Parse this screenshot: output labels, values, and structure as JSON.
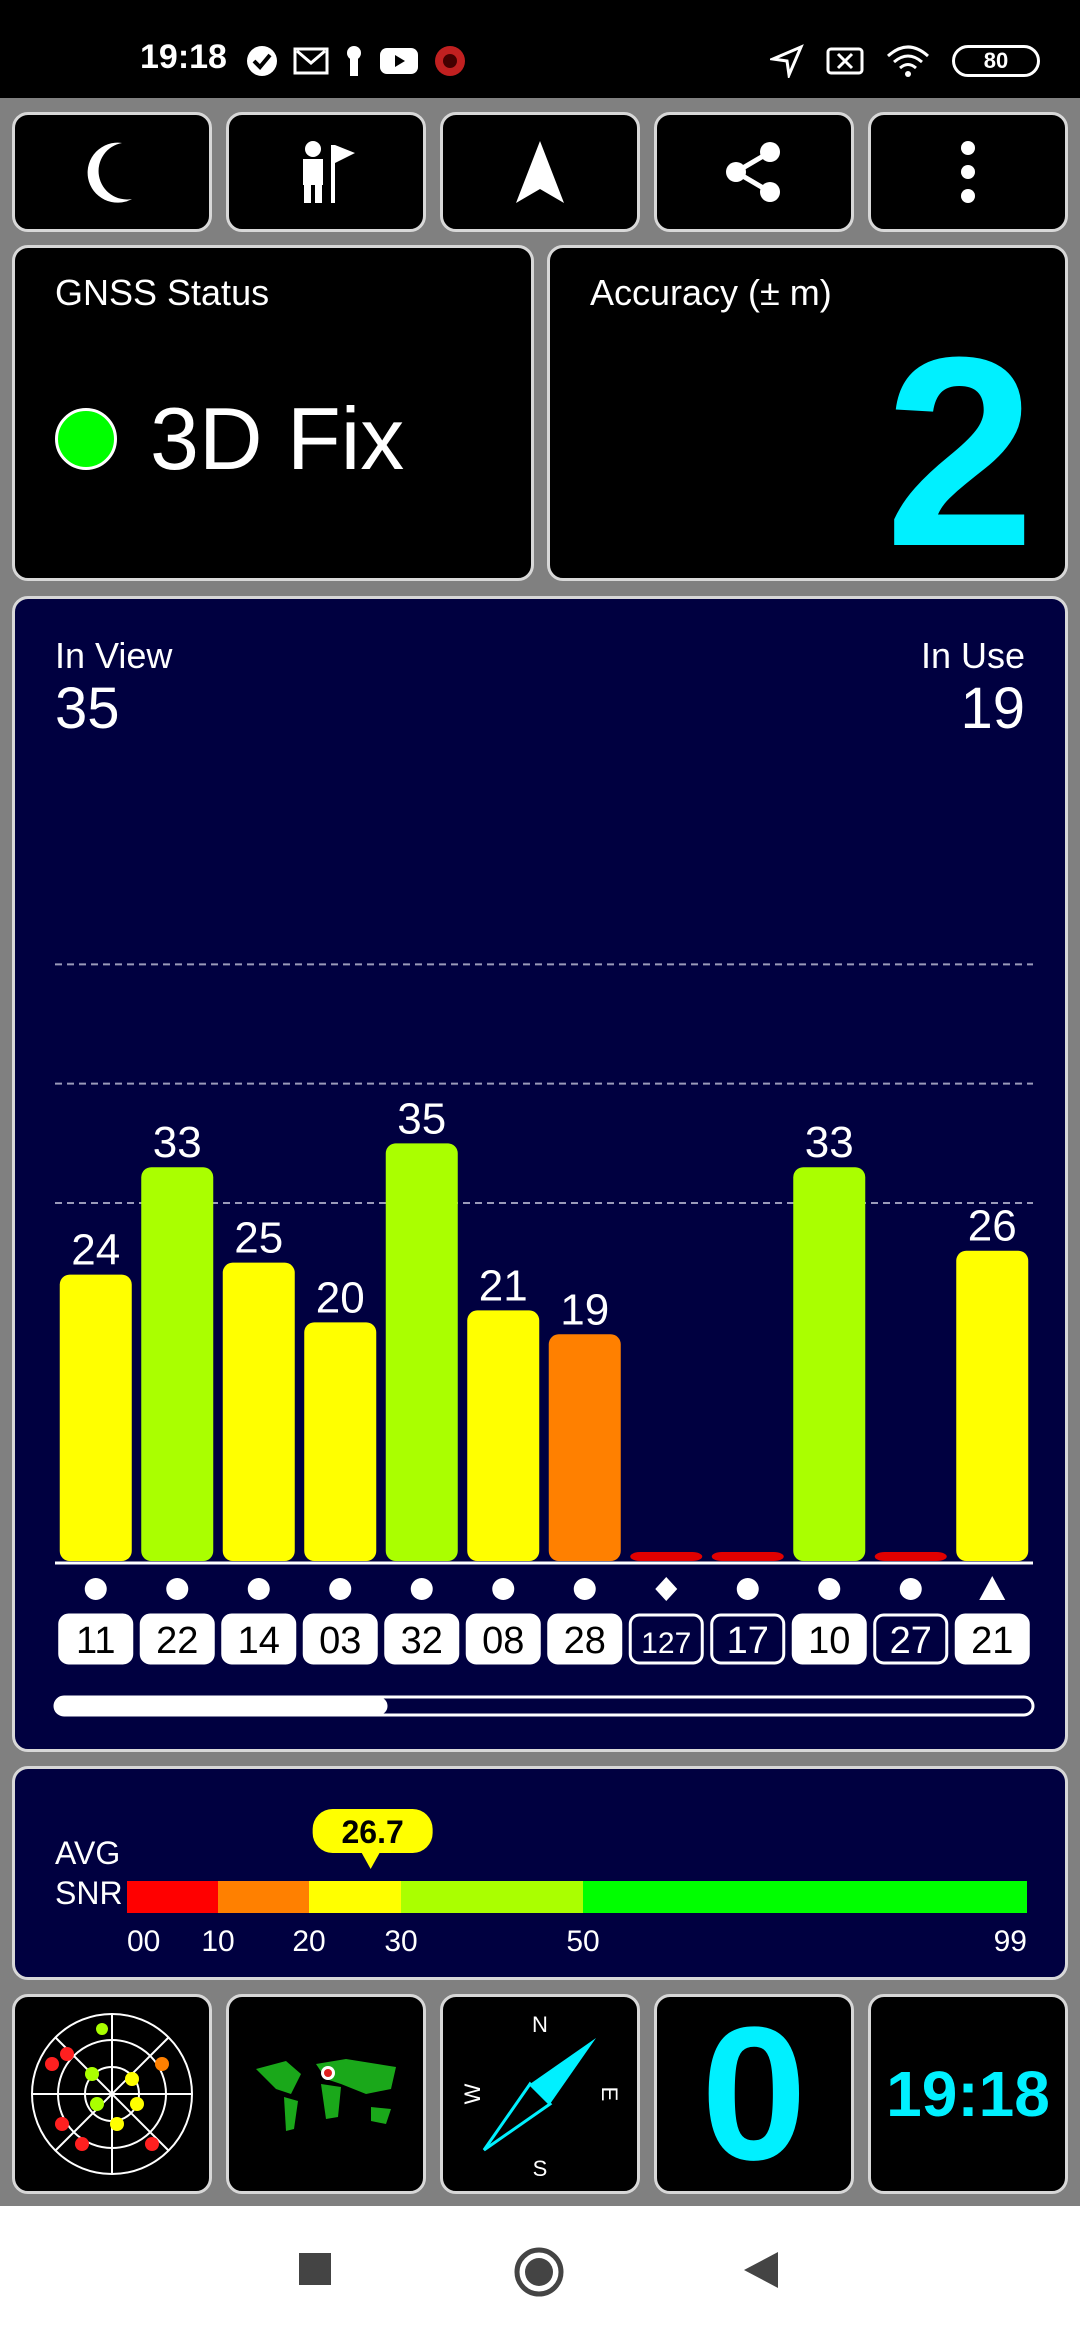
{
  "status_bar": {
    "time": "19:18",
    "battery": "80",
    "left_icons": [
      "check-circle-icon",
      "mail-icon",
      "keyhole-icon",
      "youtube-icon",
      "app-badge-icon"
    ],
    "right_icons": [
      "location-arrow-icon",
      "no-sim-icon",
      "wifi-icon"
    ]
  },
  "toolbar": {
    "buttons": [
      {
        "name": "night-mode-button",
        "icon": "moon-icon"
      },
      {
        "name": "waypoint-button",
        "icon": "person-flag-icon"
      },
      {
        "name": "navigate-button",
        "icon": "navigation-arrow-icon"
      },
      {
        "name": "share-button",
        "icon": "share-icon"
      },
      {
        "name": "more-button",
        "icon": "more-vertical-icon"
      }
    ]
  },
  "gnss_status": {
    "label": "GNSS Status",
    "value": "3D Fix",
    "indicator_color": "#00ff00"
  },
  "accuracy": {
    "label": "Accuracy (± m)",
    "value": "2",
    "color": "#00f0ff"
  },
  "satellites": {
    "in_view_label": "In View",
    "in_view": "35",
    "in_use_label": "In Use",
    "in_use": "19"
  },
  "chart_data": {
    "type": "bar",
    "categories": [
      "11",
      "22",
      "14",
      "03",
      "32",
      "08",
      "28",
      "127",
      "17",
      "10",
      "27",
      "21"
    ],
    "values": [
      24,
      33,
      25,
      20,
      35,
      21,
      19,
      0,
      0,
      33,
      0,
      26
    ],
    "labels": [
      "24",
      "33",
      "25",
      "20",
      "35",
      "21",
      "19",
      "",
      "",
      "33",
      "",
      "26"
    ],
    "colors": [
      "#ffff00",
      "#aaff00",
      "#ffff00",
      "#ffff00",
      "#aaff00",
      "#ffff00",
      "#ff8000",
      "#e00000",
      "#e00000",
      "#aaff00",
      "#e00000",
      "#ffff00"
    ],
    "markers": [
      "circle",
      "circle",
      "circle",
      "circle",
      "circle",
      "circle",
      "circle",
      "diamond",
      "circle",
      "circle",
      "circle",
      "triangle"
    ],
    "in_use": [
      true,
      true,
      true,
      true,
      true,
      true,
      true,
      false,
      false,
      true,
      false,
      true
    ],
    "ylim": [
      0,
      60
    ],
    "grid": true,
    "scroll_position": 0.34
  },
  "avg_snr": {
    "label_line1": "AVG",
    "label_line2": "SNR",
    "value": "26.7",
    "value_num": 26.7,
    "ticks": [
      "00",
      "10",
      "20",
      "30",
      "50",
      "99"
    ],
    "segments": [
      {
        "from": 0,
        "to": 10,
        "color": "#ff0000"
      },
      {
        "from": 10,
        "to": 20,
        "color": "#ff8000"
      },
      {
        "from": 20,
        "to": 30,
        "color": "#ffff00"
      },
      {
        "from": 30,
        "to": 50,
        "color": "#aaff00"
      },
      {
        "from": 50,
        "to": 99,
        "color": "#00ff00"
      }
    ]
  },
  "bottom_tiles": {
    "speed": "0",
    "clock": "19:18",
    "compass": {
      "n": "N",
      "e": "E",
      "s": "S",
      "w": "W"
    }
  }
}
